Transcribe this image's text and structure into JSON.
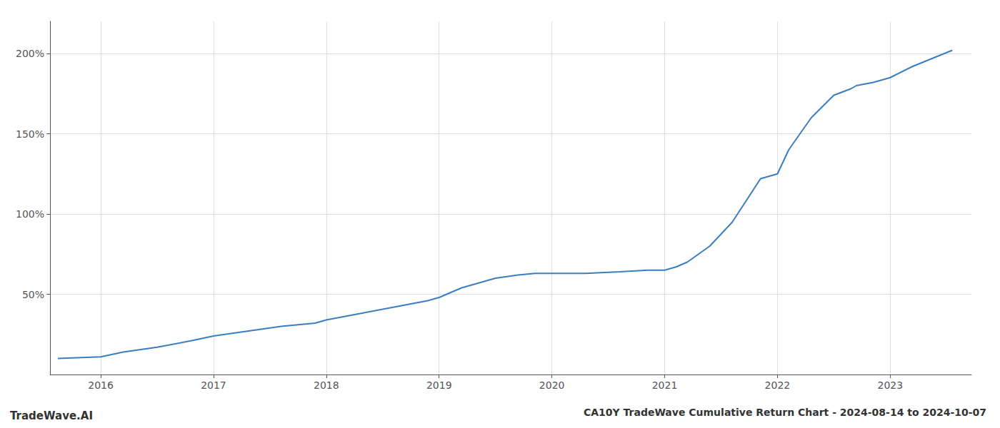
{
  "chart_data": {
    "type": "line",
    "title": "CA10Y TradeWave Cumulative Return Chart - 2024-08-14 to 2024-10-07",
    "annotations": [
      "TradeWave.AI"
    ],
    "color": "#3a7ebf",
    "x": [
      2015.62,
      2016.0,
      2016.2,
      2016.5,
      2016.8,
      2017.0,
      2017.3,
      2017.6,
      2017.9,
      2018.0,
      2018.3,
      2018.6,
      2018.9,
      2019.0,
      2019.2,
      2019.5,
      2019.7,
      2019.85,
      2020.0,
      2020.1,
      2020.3,
      2020.6,
      2020.85,
      2021.0,
      2021.1,
      2021.2,
      2021.4,
      2021.6,
      2021.85,
      2022.0,
      2022.1,
      2022.3,
      2022.5,
      2022.65,
      2022.7,
      2022.85,
      2023.0,
      2023.2,
      2023.55
    ],
    "values": [
      10,
      11,
      14,
      17,
      21,
      24,
      27,
      30,
      32,
      34,
      38,
      42,
      46,
      48,
      54,
      60,
      62,
      63,
      63,
      63,
      63,
      64,
      65,
      65,
      67,
      70,
      80,
      95,
      122,
      125,
      140,
      160,
      174,
      178,
      180,
      182,
      185,
      192,
      202
    ],
    "xlim": [
      2015.55,
      2023.72
    ],
    "xticks": [
      2016,
      2017,
      2018,
      2019,
      2020,
      2021,
      2022,
      2023
    ],
    "ylim": [
      0,
      220
    ],
    "yticks": [
      {
        "value": 50,
        "label": "50%"
      },
      {
        "value": 100,
        "label": "100%"
      },
      {
        "value": 150,
        "label": "150%"
      },
      {
        "value": 200,
        "label": "200%"
      }
    ],
    "grid": true
  }
}
